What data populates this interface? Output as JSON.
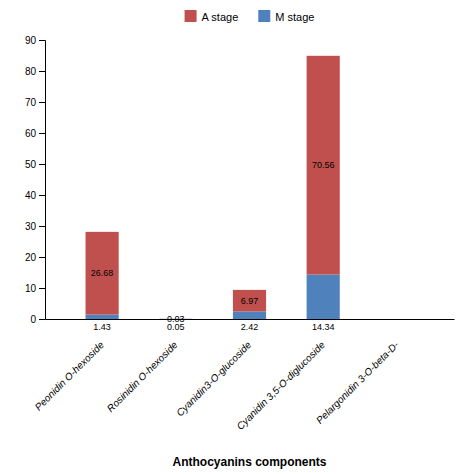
{
  "chart_data": {
    "type": "bar",
    "stacked": true,
    "xlabel": "Anthocyanins components",
    "categories": [
      "Peonidin O-hexoside",
      "Rosinidin O-hexoside",
      "Cyanidin3-O-glucoside",
      "Cyanidin 3,5-O-diglucoside",
      "Pelargonidin 3-O-beta-D-"
    ],
    "series": [
      {
        "name": "M stage",
        "color": "#4f81bd",
        "values": [
          1.43,
          0.05,
          2.42,
          14.34,
          0.0
        ]
      },
      {
        "name": "A stage",
        "color": "#c0504d",
        "values": [
          26.68,
          0.03,
          6.97,
          70.56,
          0.0
        ]
      }
    ],
    "ylim": [
      0,
      90
    ],
    "yticks": [
      0,
      10,
      20,
      30,
      40,
      50,
      60,
      70,
      80,
      90
    ],
    "grid": false,
    "legend": "top",
    "data_labels": true
  }
}
